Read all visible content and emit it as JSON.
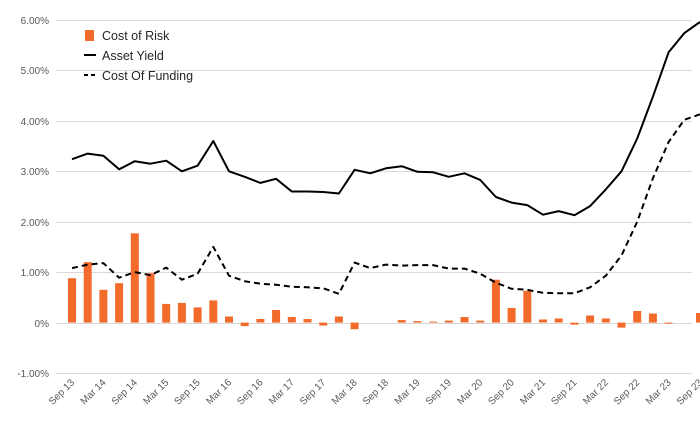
{
  "chart_data": {
    "type": "bar+line",
    "title": "",
    "xlabel": "",
    "ylabel": "",
    "ylim": [
      -0.01,
      0.06
    ],
    "yticks": [
      -0.01,
      0,
      0.01,
      0.02,
      0.03,
      0.04,
      0.05,
      0.06
    ],
    "ytick_labels": [
      "-1.00%",
      "0%",
      "1.00%",
      "2.00%",
      "3.00%",
      "4.00%",
      "5.00%",
      "6.00%"
    ],
    "x_tick_labels": [
      "Sep 13",
      "Mar 14",
      "Sep 14",
      "Mar 15",
      "Sep 15",
      "Mar 16",
      "Sep 16",
      "Mar 17",
      "Sep 17",
      "Mar 18",
      "Sep 18",
      "Mar 19",
      "Sep 19",
      "Mar 20",
      "Sep 20",
      "Mar 21",
      "Sep 21",
      "Mar 22",
      "Sep 22",
      "Mar 23",
      "Sep 23"
    ],
    "x_tick_every": 2,
    "legend_position": "top-left",
    "colors": {
      "bars": "#f26b2a",
      "lines": "#000000",
      "grid": "#d9d9d9",
      "ticks": "#595959"
    },
    "series": [
      {
        "name": "Cost of Risk",
        "kind": "bar",
        "values": [
          0.0088,
          0.012,
          0.0065,
          0.0078,
          0.0177,
          0.0098,
          0.0037,
          0.0039,
          0.003,
          0.0044,
          0.0012,
          -0.0007,
          0.0007,
          0.0025,
          0.0011,
          0.0007,
          -0.0006,
          0.0012,
          -0.0013,
          0,
          0,
          0.0005,
          0.0003,
          0.0002,
          0.0004,
          0.0011,
          0.0004,
          0.0085,
          0.0029,
          0.0063,
          0.0006,
          0.0008,
          -0.0004,
          0.0014,
          0.0008,
          -0.001,
          0.0023,
          0.0018,
          -0.0002,
          0,
          0.0019
        ]
      },
      {
        "name": "Asset Yield",
        "kind": "line",
        "dash": "solid",
        "values": [
          0.0324,
          0.0335,
          0.0331,
          0.0304,
          0.032,
          0.0315,
          0.0321,
          0.03,
          0.0311,
          0.036,
          0.03,
          0.0289,
          0.0277,
          0.0285,
          0.026,
          0.026,
          0.0259,
          0.0256,
          0.0303,
          0.0296,
          0.0306,
          0.031,
          0.0299,
          0.0298,
          0.0289,
          0.0296,
          0.0283,
          0.0249,
          0.0238,
          0.0233,
          0.0214,
          0.0221,
          0.0213,
          0.0231,
          0.0264,
          0.03,
          0.0365,
          0.0448,
          0.0536,
          0.0574,
          0.0596
        ]
      },
      {
        "name": "Cost Of Funding",
        "kind": "line",
        "dash": "dashed",
        "values": [
          0.0108,
          0.0115,
          0.0118,
          0.0089,
          0.01,
          0.0094,
          0.0109,
          0.0085,
          0.0097,
          0.015,
          0.0093,
          0.0082,
          0.0077,
          0.0075,
          0.0071,
          0.007,
          0.0068,
          0.0057,
          0.0119,
          0.0108,
          0.0115,
          0.0113,
          0.0114,
          0.0114,
          0.0107,
          0.0107,
          0.0097,
          0.0079,
          0.0067,
          0.0065,
          0.0059,
          0.0058,
          0.0058,
          0.007,
          0.0093,
          0.0133,
          0.02,
          0.0286,
          0.0358,
          0.0402,
          0.0413
        ]
      }
    ]
  }
}
